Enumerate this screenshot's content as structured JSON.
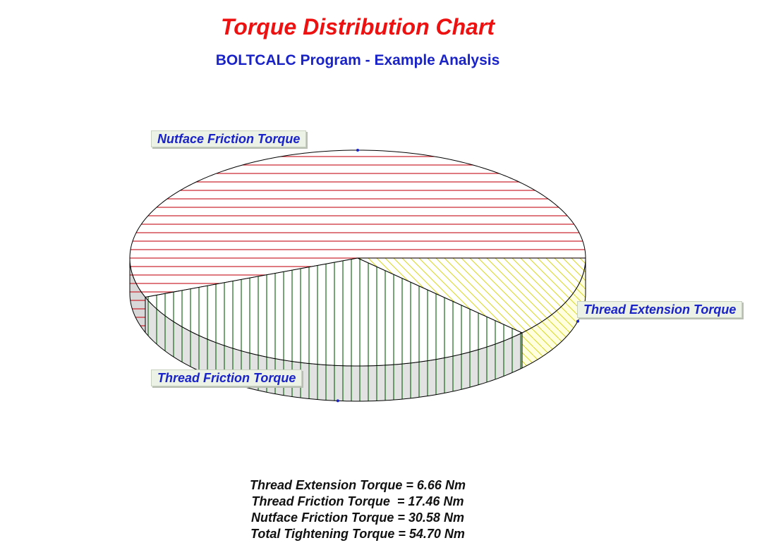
{
  "chart_data": {
    "type": "pie",
    "title": "Torque Distribution Chart",
    "subtitle": "BOLTCALC Program - Example Analysis",
    "three_d": true,
    "slices": [
      {
        "label": "Nutface Friction Torque",
        "value": 30.58,
        "color": "#c8202a",
        "hatch": "horizontal",
        "side_color": "#d8d8d8"
      },
      {
        "label": "Thread Friction Torque",
        "value": 17.46,
        "color": "#1a6a1a",
        "hatch": "vertical",
        "side_color": "#e2e2e2"
      },
      {
        "label": "Thread Extension Torque",
        "value": 6.66,
        "color": "#d8d820",
        "hatch": "diagonal",
        "side_color": "#ffffe0"
      }
    ],
    "unit": "Nm"
  },
  "summary": [
    "Thread Extension Torque = 6.66 Nm",
    "Thread Friction Torque  = 17.46 Nm",
    "Nutface Friction Torque = 30.58 Nm",
    "Total Tightening Torque = 54.70 Nm"
  ]
}
